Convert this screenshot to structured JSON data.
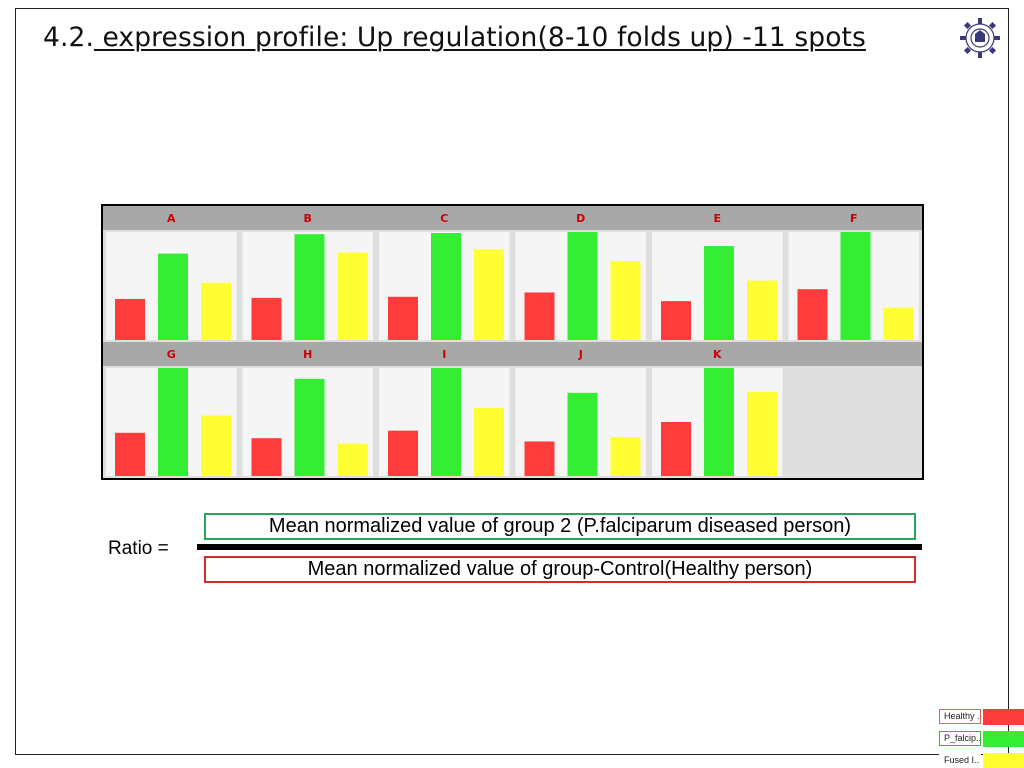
{
  "slide": {
    "number": "4.2.",
    "title": " expression profile: Up regulation(8-10 folds up) -11 spots"
  },
  "formula": {
    "ratio_label": "Ratio =",
    "numerator": "Mean normalized value of group 2 (P.falciparum diseased person)",
    "denominator": "Mean normalized value of group-Control(Healthy person)"
  },
  "legend": {
    "items": [
      {
        "label": "Healthy ...",
        "color": "#ff3c3c"
      },
      {
        "label": "P_falcip...",
        "color": "#33ee33"
      },
      {
        "label": "Fused I...",
        "color": "#ffff33"
      }
    ]
  },
  "colors": {
    "healthy": "#ff3c3c",
    "falciparum": "#33ee33",
    "fused": "#ffff33",
    "panel_header": "#a8a8a8",
    "panel_header_text": "#cc0000",
    "panel_background": "#f5f5f5",
    "empty_background": "#dedede"
  },
  "chart_data": {
    "type": "bar",
    "series_names": [
      "Healthy ...",
      "P_falcip...",
      "Fused I..."
    ],
    "panels": [
      {
        "label": "A",
        "values": [
          0.38,
          0.8,
          0.53
        ]
      },
      {
        "label": "B",
        "values": [
          0.39,
          0.98,
          0.81
        ]
      },
      {
        "label": "C",
        "values": [
          0.4,
          0.99,
          0.84
        ]
      },
      {
        "label": "D",
        "values": [
          0.44,
          1.0,
          0.73
        ]
      },
      {
        "label": "E",
        "values": [
          0.36,
          0.87,
          0.55
        ]
      },
      {
        "label": "F",
        "values": [
          0.47,
          1.0,
          0.3
        ]
      },
      {
        "label": "G",
        "values": [
          0.4,
          1.0,
          0.56
        ]
      },
      {
        "label": "H",
        "values": [
          0.35,
          0.9,
          0.3
        ]
      },
      {
        "label": "I",
        "values": [
          0.42,
          1.0,
          0.63
        ]
      },
      {
        "label": "J",
        "values": [
          0.32,
          0.77,
          0.36
        ]
      },
      {
        "label": "K",
        "values": [
          0.5,
          1.0,
          0.78
        ]
      }
    ]
  }
}
